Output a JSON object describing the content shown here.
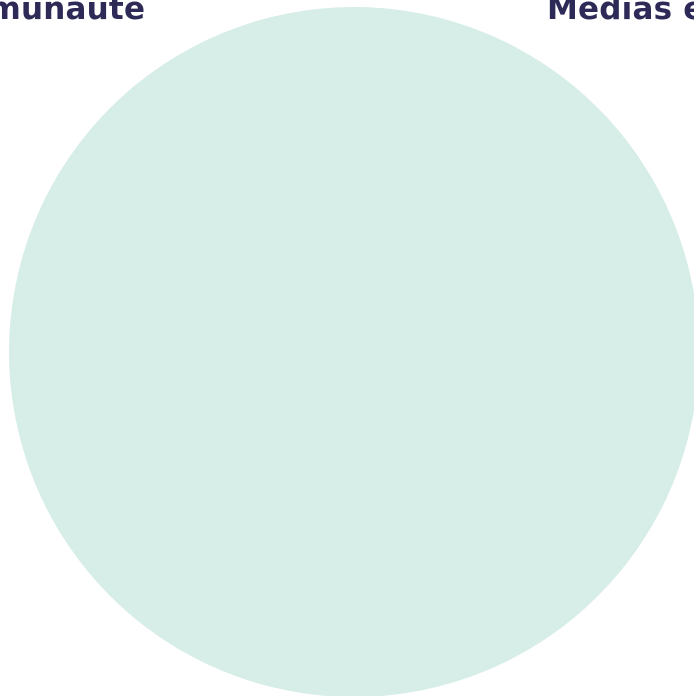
{
  "nav": {
    "left_label": "mmunauté",
    "right_label": "Médias e"
  },
  "colors": {
    "label_text": "#2e2a57",
    "circle_fill": "#d7ede7",
    "background": "#ffffff"
  }
}
